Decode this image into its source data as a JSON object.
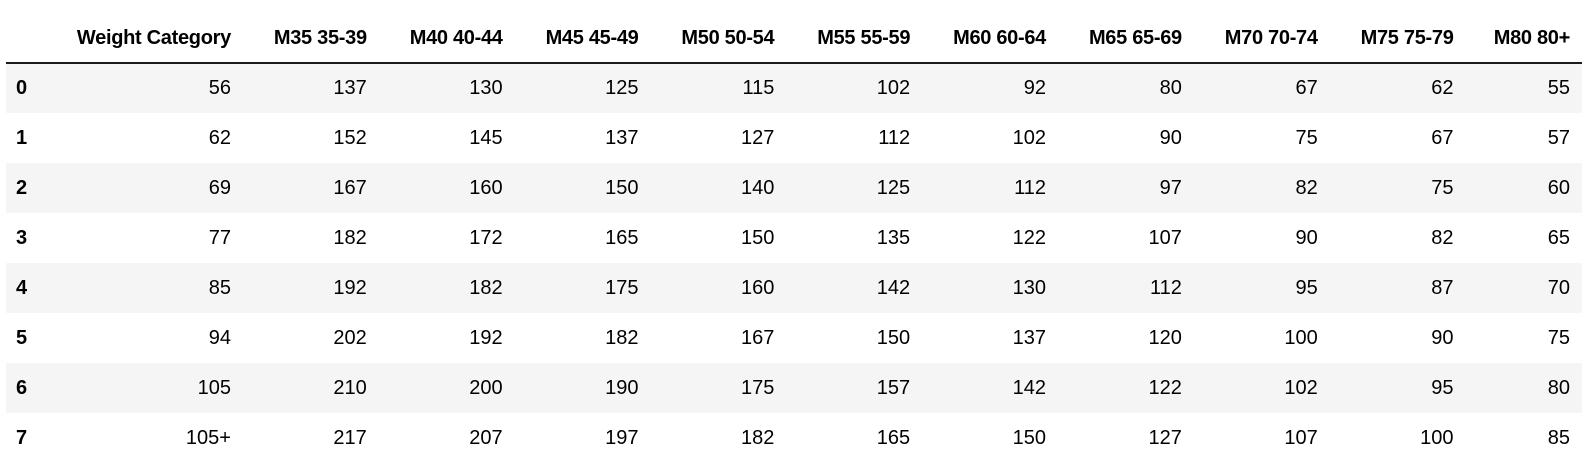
{
  "table": {
    "index_header": "",
    "columns": [
      "Weight Category",
      "M35 35-39",
      "M40 40-44",
      "M45 45-49",
      "M50 50-54",
      "M55 55-59",
      "M60 60-64",
      "M65 65-69",
      "M70 70-74",
      "M75 75-79",
      "M80 80+"
    ],
    "rows": [
      {
        "index": "0",
        "cells": [
          "56",
          "137",
          "130",
          "125",
          "115",
          "102",
          "92",
          "80",
          "67",
          "62",
          "55"
        ]
      },
      {
        "index": "1",
        "cells": [
          "62",
          "152",
          "145",
          "137",
          "127",
          "112",
          "102",
          "90",
          "75",
          "67",
          "57"
        ]
      },
      {
        "index": "2",
        "cells": [
          "69",
          "167",
          "160",
          "150",
          "140",
          "125",
          "112",
          "97",
          "82",
          "75",
          "60"
        ]
      },
      {
        "index": "3",
        "cells": [
          "77",
          "182",
          "172",
          "165",
          "150",
          "135",
          "122",
          "107",
          "90",
          "82",
          "65"
        ]
      },
      {
        "index": "4",
        "cells": [
          "85",
          "192",
          "182",
          "175",
          "160",
          "142",
          "130",
          "112",
          "95",
          "87",
          "70"
        ]
      },
      {
        "index": "5",
        "cells": [
          "94",
          "202",
          "192",
          "182",
          "167",
          "150",
          "137",
          "120",
          "100",
          "90",
          "75"
        ]
      },
      {
        "index": "6",
        "cells": [
          "105",
          "210",
          "200",
          "190",
          "175",
          "157",
          "142",
          "122",
          "102",
          "95",
          "80"
        ]
      },
      {
        "index": "7",
        "cells": [
          "105+",
          "217",
          "207",
          "197",
          "182",
          "165",
          "150",
          "127",
          "107",
          "100",
          "85"
        ]
      }
    ]
  },
  "colors": {
    "striped_row": "#f5f5f5",
    "header_rule": "#1a1a1a",
    "text": "#000000"
  }
}
